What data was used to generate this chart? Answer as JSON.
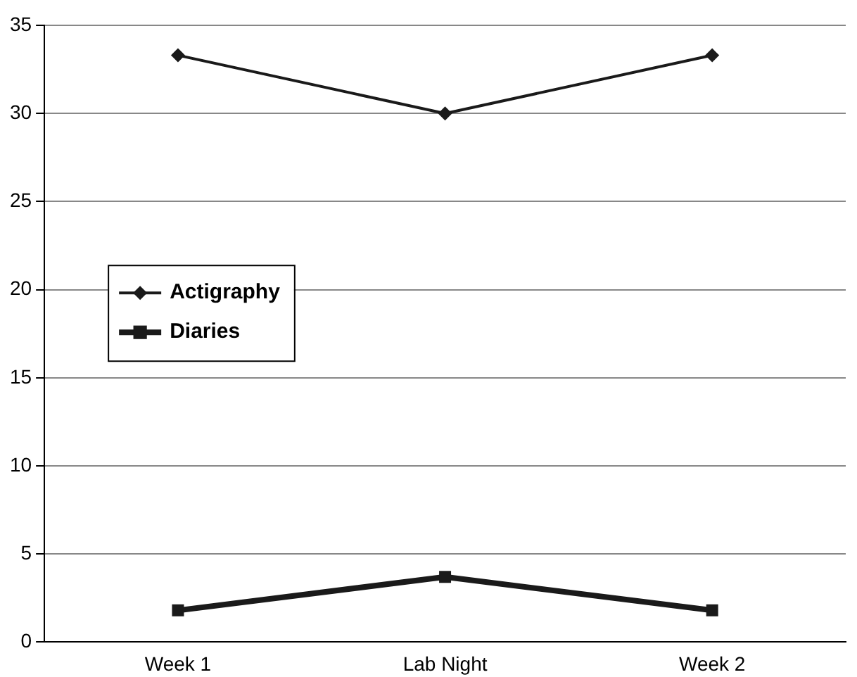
{
  "chart_data": {
    "type": "line",
    "categories": [
      "Week 1",
      "Lab Night",
      "Week 2"
    ],
    "series": [
      {
        "name": "Actigraphy",
        "color": "#1a1a1a",
        "values": [
          33.3,
          30,
          33.3
        ],
        "marker": "diamond"
      },
      {
        "name": "Diaries",
        "color": "#1a1a1a",
        "values": [
          1.8,
          3.7,
          1.8
        ],
        "marker": "square"
      }
    ],
    "ylim": [
      0,
      35
    ],
    "yticks": [
      0,
      5,
      10,
      15,
      20,
      25,
      30,
      35
    ],
    "grid": "y",
    "legend": "left",
    "line_style": "solid"
  }
}
